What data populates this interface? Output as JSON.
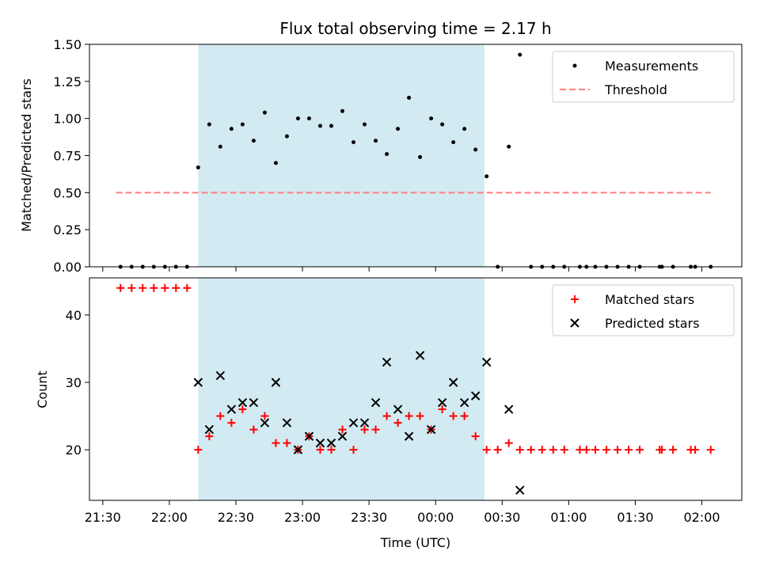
{
  "chart_data": [
    {
      "type": "scatter",
      "title": "Flux total observing time = 2.17 h",
      "xlabel": "",
      "ylabel": "Matched/Predicted stars",
      "ylim": [
        0,
        1.5
      ],
      "yticks": [
        "0.00",
        "0.25",
        "0.50",
        "0.75",
        "1.00",
        "1.25",
        "1.50"
      ],
      "xlim": [
        "21:24",
        "02:18"
      ],
      "shaded_interval": [
        "22:13",
        "00:22"
      ],
      "shade_color": "#add8e6",
      "legend_position": "upper right",
      "series": [
        {
          "name": "Measurements",
          "color": "#000000",
          "marker": "dot",
          "x": [
            "21:38",
            "21:43",
            "21:48",
            "21:53",
            "21:58",
            "22:03",
            "22:08",
            "22:13",
            "22:18",
            "22:23",
            "22:28",
            "22:33",
            "22:38",
            "22:43",
            "22:48",
            "22:53",
            "22:58",
            "23:03",
            "23:08",
            "23:13",
            "23:18",
            "23:23",
            "23:28",
            "23:33",
            "23:38",
            "23:43",
            "23:48",
            "23:53",
            "23:58",
            "00:03",
            "00:08",
            "00:13",
            "00:18",
            "00:23",
            "00:28",
            "00:33",
            "00:38",
            "00:43",
            "00:48",
            "00:53",
            "00:58",
            "01:05",
            "01:08",
            "01:12",
            "01:17",
            "01:22",
            "01:27",
            "01:32",
            "01:41",
            "01:42",
            "01:47",
            "01:55",
            "01:57",
            "02:04"
          ],
          "values": [
            0,
            0,
            0,
            0,
            0,
            0,
            0,
            0.67,
            0.96,
            0.81,
            0.93,
            0.96,
            0.85,
            1.04,
            0.7,
            0.88,
            1.0,
            1.0,
            0.95,
            0.95,
            1.05,
            0.84,
            0.96,
            0.85,
            0.76,
            0.93,
            1.14,
            0.74,
            1.0,
            0.96,
            0.84,
            0.93,
            0.79,
            0.61,
            0,
            0.81,
            1.43,
            0,
            0,
            0,
            0,
            0,
            0,
            0,
            0,
            0,
            0,
            0,
            0,
            0,
            0,
            0,
            0,
            0
          ]
        },
        {
          "name": "Threshold",
          "color": "#ff7f7f",
          "style": "dashed",
          "x": [
            "21:36",
            "02:04"
          ],
          "values": [
            0.5,
            0.5
          ]
        }
      ]
    },
    {
      "type": "scatter",
      "title": "",
      "xlabel": "Time (UTC)",
      "ylabel": "Count",
      "ylim": [
        12.5,
        45.5
      ],
      "yticks": [
        "20",
        "30",
        "40"
      ],
      "xticks": [
        "21:30",
        "22:00",
        "22:30",
        "23:00",
        "23:30",
        "00:00",
        "00:30",
        "01:00",
        "01:30",
        "02:00"
      ],
      "xlim": [
        "21:24",
        "02:18"
      ],
      "shaded_interval": [
        "22:13",
        "00:22"
      ],
      "shade_color": "#add8e6",
      "legend_position": "upper right",
      "series": [
        {
          "name": "Matched stars",
          "color": "#ff0000",
          "marker": "plus",
          "x": [
            "21:38",
            "21:43",
            "21:48",
            "21:53",
            "21:58",
            "22:03",
            "22:08",
            "22:13",
            "22:18",
            "22:23",
            "22:28",
            "22:33",
            "22:38",
            "22:43",
            "22:48",
            "22:53",
            "22:58",
            "23:03",
            "23:08",
            "23:13",
            "23:18",
            "23:23",
            "23:28",
            "23:33",
            "23:38",
            "23:43",
            "23:48",
            "23:53",
            "23:58",
            "00:03",
            "00:08",
            "00:13",
            "00:18",
            "00:23",
            "00:28",
            "00:33",
            "00:38",
            "00:43",
            "00:48",
            "00:53",
            "00:58",
            "01:05",
            "01:08",
            "01:12",
            "01:17",
            "01:22",
            "01:27",
            "01:32",
            "01:41",
            "01:42",
            "01:47",
            "01:55",
            "01:57",
            "02:04"
          ],
          "values": [
            44,
            44,
            44,
            44,
            44,
            44,
            44,
            20,
            22,
            25,
            24,
            26,
            23,
            25,
            21,
            21,
            20,
            22,
            20,
            20,
            23,
            20,
            23,
            23,
            25,
            24,
            25,
            25,
            23,
            26,
            25,
            25,
            22,
            20,
            20,
            21,
            20,
            20,
            20,
            20,
            20,
            20,
            20,
            20,
            20,
            20,
            20,
            20,
            20,
            20,
            20,
            20,
            20,
            20
          ]
        },
        {
          "name": "Predicted stars",
          "color": "#000000",
          "marker": "x",
          "x": [
            "22:13",
            "22:18",
            "22:23",
            "22:28",
            "22:33",
            "22:38",
            "22:43",
            "22:48",
            "22:53",
            "22:58",
            "23:03",
            "23:08",
            "23:13",
            "23:18",
            "23:23",
            "23:28",
            "23:33",
            "23:38",
            "23:43",
            "23:48",
            "23:53",
            "23:58",
            "00:03",
            "00:08",
            "00:13",
            "00:18",
            "00:23",
            "00:33",
            "00:38"
          ],
          "values": [
            30,
            23,
            31,
            26,
            27,
            27,
            24,
            30,
            24,
            20,
            22,
            21,
            21,
            22,
            24,
            24,
            27,
            33,
            26,
            22,
            34,
            23,
            27,
            30,
            27,
            28,
            33,
            26,
            14
          ]
        }
      ]
    }
  ]
}
